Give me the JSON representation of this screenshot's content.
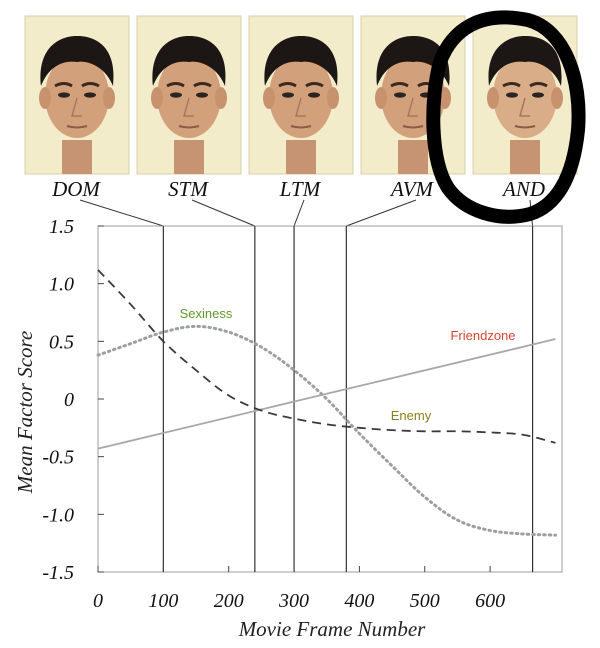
{
  "faces": [
    {
      "label": "DOM",
      "frame": 100
    },
    {
      "label": "STM",
      "frame": 240
    },
    {
      "label": "LTM",
      "frame": 300
    },
    {
      "label": "AVM",
      "frame": 380
    },
    {
      "label": "AND",
      "frame": 665,
      "circled": true
    }
  ],
  "chart_data": {
    "type": "line",
    "title": "",
    "xlabel": "Movie Frame Number",
    "ylabel": "Mean Factor Score",
    "xlim": [
      0,
      710
    ],
    "ylim": [
      -1.5,
      1.5
    ],
    "x_ticks": [
      0,
      100,
      200,
      300,
      400,
      500,
      600
    ],
    "y_ticks": [
      1.5,
      1.0,
      0.5,
      0,
      -0.5,
      -1.0,
      -1.5
    ],
    "y_tick_labels": [
      "1.5",
      "1.0",
      "0.5",
      "0",
      "-0.5",
      "-1.0",
      "-1.5"
    ],
    "vertical_markers": [
      100,
      240,
      300,
      380,
      665
    ],
    "series": [
      {
        "name": "Sexiness",
        "style": "dotted",
        "label_color": "#5f9a2f",
        "line_color": "#9aa0a6",
        "x": [
          0,
          50,
          100,
          150,
          200,
          250,
          300,
          350,
          400,
          450,
          500,
          550,
          600,
          650,
          700
        ],
        "y": [
          0.38,
          0.48,
          0.58,
          0.63,
          0.58,
          0.45,
          0.25,
          0.0,
          -0.3,
          -0.58,
          -0.85,
          -1.05,
          -1.14,
          -1.17,
          -1.18
        ]
      },
      {
        "name": "Friendzone",
        "style": "solid",
        "label_color": "#d9442f",
        "line_color": "#a8a8a8",
        "x": [
          0,
          700
        ],
        "y": [
          -0.43,
          0.52
        ]
      },
      {
        "name": "Enemy",
        "style": "dashed",
        "label_color": "#8a7f1a",
        "line_color": "#3a3a3a",
        "x": [
          0,
          50,
          100,
          150,
          200,
          250,
          300,
          350,
          400,
          450,
          500,
          550,
          600,
          650,
          700
        ],
        "y": [
          1.12,
          0.82,
          0.5,
          0.25,
          0.03,
          -0.1,
          -0.17,
          -0.22,
          -0.25,
          -0.27,
          -0.28,
          -0.28,
          -0.29,
          -0.31,
          -0.38
        ]
      }
    ]
  }
}
